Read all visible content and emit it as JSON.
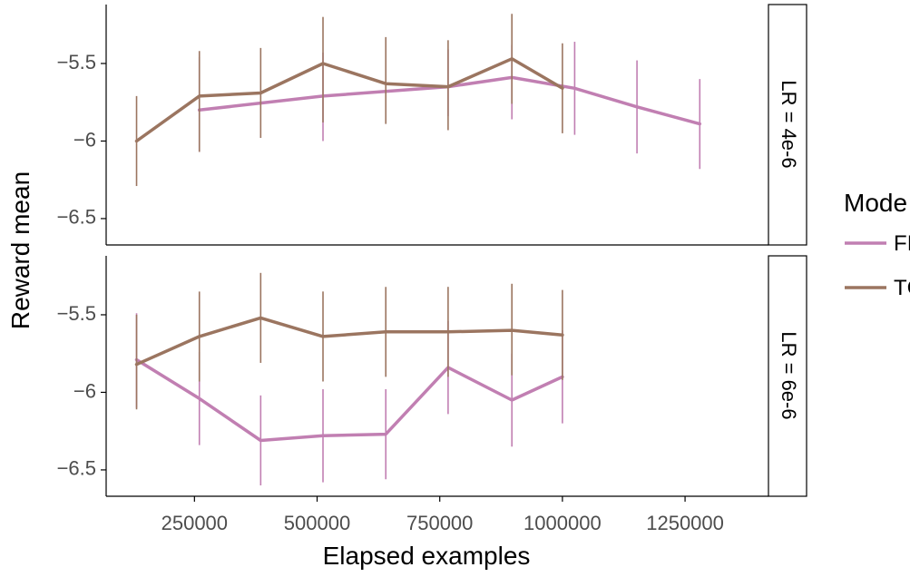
{
  "chart_data": {
    "type": "line",
    "xlabel": "Elapsed examples",
    "ylabel": "Reward mean",
    "xlim": [
      70000,
      1420000
    ],
    "xticks": [
      250000,
      500000,
      750000,
      1000000,
      1250000
    ],
    "xtick_labels": [
      "250000",
      "500000",
      "750000",
      "1000000",
      "1250000"
    ],
    "ylim": [
      -6.67,
      -5.12
    ],
    "yticks": [
      -5.5,
      -6,
      -6.5
    ],
    "ytick_labels": [
      "−5.5",
      "−6",
      "−6.5"
    ],
    "grid": false,
    "legend": {
      "title": "Mode",
      "placement": "right",
      "entries": [
        {
          "label": "FI",
          "color": "#c17fb2"
        },
        {
          "label": "TC",
          "color": "#9b7560"
        }
      ]
    },
    "panels": [
      {
        "strip_label": "LR = 4e-6",
        "series": [
          {
            "legend_index": 0,
            "color": "#c17fb2",
            "x": [
              260000,
              512000,
              767000,
              897000,
              1025000,
              1152000,
              1280000
            ],
            "y": [
              -5.8,
              -5.71,
              -5.65,
              -5.59,
              -5.66,
              -5.78,
              -5.89
            ],
            "err_low": [
              -6.07,
              -6.0,
              -5.84,
              -5.86,
              -5.96,
              -6.08,
              -6.18
            ],
            "err_high": [
              -5.46,
              -5.43,
              -5.41,
              -5.38,
              -5.36,
              -5.48,
              -5.6
            ]
          },
          {
            "legend_index": 1,
            "color": "#9b7560",
            "x": [
              132000,
              260000,
              385000,
              512000,
              640000,
              767000,
              897000,
              1000000
            ],
            "y": [
              -6.0,
              -5.71,
              -5.69,
              -5.5,
              -5.63,
              -5.65,
              -5.47,
              -5.66
            ],
            "err_low": [
              -6.29,
              -6.07,
              -5.98,
              -5.88,
              -5.89,
              -5.93,
              -5.76,
              -5.95
            ],
            "err_high": [
              -5.71,
              -5.42,
              -5.4,
              -5.2,
              -5.33,
              -5.35,
              -5.18,
              -5.37
            ]
          }
        ]
      },
      {
        "strip_label": "LR = 6e-6",
        "series": [
          {
            "legend_index": 0,
            "color": "#c17fb2",
            "x": [
              132000,
              260000,
              385000,
              512000,
              640000,
              767000,
              897000,
              1000000
            ],
            "y": [
              -5.79,
              -6.04,
              -6.31,
              -6.28,
              -6.27,
              -5.84,
              -6.05,
              -5.9
            ],
            "err_low": [
              -6.1,
              -6.34,
              -6.6,
              -6.58,
              -6.56,
              -6.14,
              -6.35,
              -6.2
            ],
            "err_high": [
              -5.49,
              -5.74,
              -6.02,
              -5.98,
              -5.98,
              -5.54,
              -5.75,
              -5.6
            ]
          },
          {
            "legend_index": 1,
            "color": "#9b7560",
            "x": [
              132000,
              260000,
              385000,
              512000,
              640000,
              767000,
              897000,
              1000000
            ],
            "y": [
              -5.82,
              -5.64,
              -5.52,
              -5.64,
              -5.61,
              -5.61,
              -5.6,
              -5.63
            ],
            "err_low": [
              -6.11,
              -5.93,
              -5.81,
              -5.93,
              -5.9,
              -5.9,
              -5.89,
              -5.92
            ],
            "err_high": [
              -5.5,
              -5.35,
              -5.23,
              -5.35,
              -5.32,
              -5.32,
              -5.3,
              -5.34
            ]
          }
        ]
      }
    ]
  }
}
